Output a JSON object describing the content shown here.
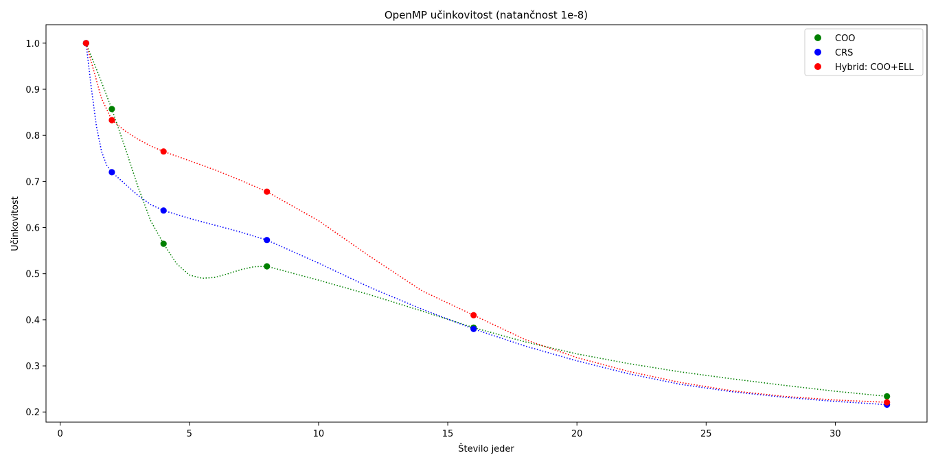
{
  "chart_data": {
    "type": "line",
    "title": "OpenMP učinkovitost (natančnost 1e-8)",
    "xlabel": "Število jeder",
    "ylabel": "Učinkovitost",
    "x": [
      1,
      2,
      4,
      8,
      16,
      32
    ],
    "xlim": [
      -0.55,
      33.55
    ],
    "ylim": [
      0.178,
      1.04
    ],
    "xticks": [
      0,
      5,
      10,
      15,
      20,
      25,
      30
    ],
    "yticks": [
      0.2,
      0.3,
      0.4,
      0.5,
      0.6,
      0.7,
      0.8,
      0.9,
      1.0
    ],
    "xtick_labels": [
      "0",
      "5",
      "10",
      "15",
      "20",
      "25",
      "30"
    ],
    "ytick_labels": [
      "0.2",
      "0.3",
      "0.4",
      "0.5",
      "0.6",
      "0.7",
      "0.8",
      "0.9",
      "1.0"
    ],
    "grid": false,
    "legend_position": "top-right",
    "line_style": "dotted, smooth interpolation",
    "series": [
      {
        "name": "COO",
        "color": "#008000",
        "values": [
          1.0,
          0.857,
          0.565,
          0.516,
          0.383,
          0.234
        ],
        "curve": [
          [
            1,
            1.0
          ],
          [
            1.5,
            0.93
          ],
          [
            2,
            0.857
          ],
          [
            2.5,
            0.775
          ],
          [
            3,
            0.69
          ],
          [
            3.5,
            0.615
          ],
          [
            4,
            0.565
          ],
          [
            4.5,
            0.522
          ],
          [
            5,
            0.497
          ],
          [
            5.5,
            0.49
          ],
          [
            6,
            0.492
          ],
          [
            6.5,
            0.5
          ],
          [
            7,
            0.509
          ],
          [
            7.5,
            0.515
          ],
          [
            8,
            0.516
          ],
          [
            10,
            0.486
          ],
          [
            12,
            0.454
          ],
          [
            14,
            0.419
          ],
          [
            16,
            0.383
          ],
          [
            18,
            0.352
          ],
          [
            20,
            0.326
          ],
          [
            22,
            0.305
          ],
          [
            24,
            0.287
          ],
          [
            26,
            0.272
          ],
          [
            28,
            0.258
          ],
          [
            30,
            0.245
          ],
          [
            32,
            0.234
          ]
        ]
      },
      {
        "name": "CRS",
        "color": "#0000ff",
        "values": [
          1.0,
          0.72,
          0.637,
          0.573,
          0.38,
          0.216
        ],
        "curve": [
          [
            1,
            1.0
          ],
          [
            1.2,
            0.905
          ],
          [
            1.4,
            0.82
          ],
          [
            1.6,
            0.765
          ],
          [
            1.8,
            0.735
          ],
          [
            2,
            0.72
          ],
          [
            2.5,
            0.695
          ],
          [
            3,
            0.67
          ],
          [
            3.5,
            0.65
          ],
          [
            4,
            0.637
          ],
          [
            5,
            0.62
          ],
          [
            6,
            0.605
          ],
          [
            7,
            0.59
          ],
          [
            8,
            0.573
          ],
          [
            10,
            0.523
          ],
          [
            12,
            0.47
          ],
          [
            14,
            0.423
          ],
          [
            16,
            0.38
          ],
          [
            18,
            0.343
          ],
          [
            20,
            0.311
          ],
          [
            22,
            0.283
          ],
          [
            24,
            0.26
          ],
          [
            26,
            0.244
          ],
          [
            28,
            0.232
          ],
          [
            30,
            0.223
          ],
          [
            32,
            0.216
          ]
        ]
      },
      {
        "name": "Hybrid: COO+ELL",
        "color": "#ff0000",
        "values": [
          1.0,
          0.833,
          0.765,
          0.678,
          0.41,
          0.221
        ],
        "curve": [
          [
            1,
            1.0
          ],
          [
            1.3,
            0.94
          ],
          [
            1.6,
            0.88
          ],
          [
            2,
            0.833
          ],
          [
            2.5,
            0.81
          ],
          [
            3,
            0.792
          ],
          [
            3.5,
            0.777
          ],
          [
            4,
            0.765
          ],
          [
            5,
            0.745
          ],
          [
            6,
            0.725
          ],
          [
            7,
            0.702
          ],
          [
            8,
            0.678
          ],
          [
            10,
            0.615
          ],
          [
            12,
            0.537
          ],
          [
            14,
            0.463
          ],
          [
            16,
            0.41
          ],
          [
            18,
            0.357
          ],
          [
            20,
            0.318
          ],
          [
            22,
            0.288
          ],
          [
            24,
            0.264
          ],
          [
            26,
            0.246
          ],
          [
            28,
            0.234
          ],
          [
            30,
            0.226
          ],
          [
            32,
            0.221
          ]
        ]
      }
    ]
  }
}
